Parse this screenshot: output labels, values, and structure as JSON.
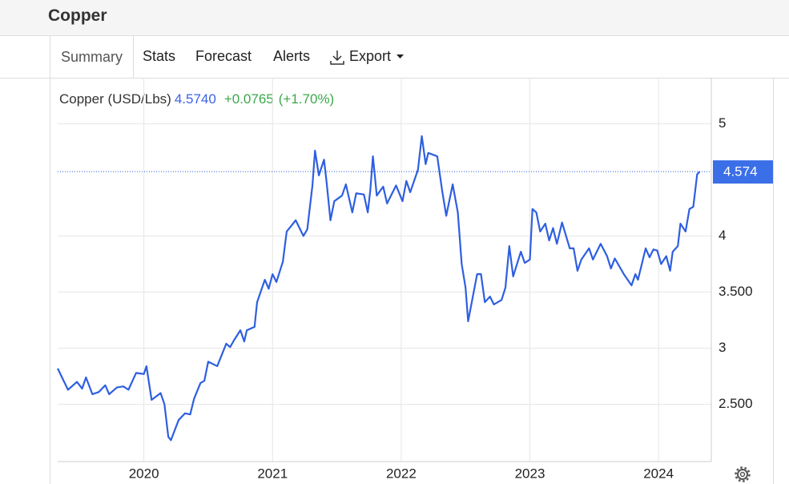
{
  "header": {
    "title": "Copper"
  },
  "tabs": [
    "Summary",
    "Stats",
    "Forecast",
    "Alerts",
    "Export"
  ],
  "quote": {
    "name": "Copper (USD/Lbs)",
    "price": "4.5740",
    "change": "+0.0765",
    "change_percent": "(+1.70%)"
  },
  "chart_data": {
    "type": "line",
    "color": "#2e5fe0",
    "grid": true,
    "xlim": [
      2019.33,
      2024.41
    ],
    "xticks": [
      2020,
      2021,
      2022,
      2023,
      2024
    ],
    "ylim": [
      1.99,
      5.41
    ],
    "yticks": [
      5,
      4,
      {
        "value": 3.5,
        "label": "3.500"
      },
      3,
      {
        "value": 2.5,
        "label": "2.500"
      }
    ],
    "last_value": 4.574,
    "x": [
      2019.33,
      2019.41,
      2019.48,
      2019.52,
      2019.55,
      2019.6,
      2019.65,
      2019.7,
      2019.73,
      2019.79,
      2019.84,
      2019.88,
      2019.94,
      2020.0,
      2020.02,
      2020.06,
      2020.13,
      2020.16,
      2020.19,
      2020.21,
      2020.27,
      2020.32,
      2020.36,
      2020.39,
      2020.44,
      2020.47,
      2020.5,
      2020.57,
      2020.64,
      2020.67,
      2020.7,
      2020.75,
      2020.78,
      2020.8,
      2020.86,
      2020.88,
      2020.94,
      2020.97,
      2021.0,
      2021.03,
      2021.08,
      2021.11,
      2021.18,
      2021.24,
      2021.27,
      2021.31,
      2021.33,
      2021.36,
      2021.4,
      2021.42,
      2021.45,
      2021.48,
      2021.54,
      2021.57,
      2021.62,
      2021.65,
      2021.71,
      2021.74,
      2021.76,
      2021.78,
      2021.81,
      2021.86,
      2021.89,
      2021.96,
      2022.01,
      2022.04,
      2022.07,
      2022.13,
      2022.16,
      2022.19,
      2022.21,
      2022.28,
      2022.32,
      2022.35,
      2022.4,
      2022.44,
      2022.47,
      2022.5,
      2022.52,
      2022.59,
      2022.62,
      2022.65,
      2022.69,
      2022.72,
      2022.78,
      2022.81,
      2022.84,
      2022.87,
      2022.93,
      2022.96,
      2023.0,
      2023.02,
      2023.05,
      2023.08,
      2023.12,
      2023.15,
      2023.18,
      2023.21,
      2023.25,
      2023.31,
      2023.34,
      2023.37,
      2023.4,
      2023.46,
      2023.49,
      2023.55,
      2023.6,
      2023.63,
      2023.66,
      2023.73,
      2023.79,
      2023.82,
      2023.84,
      2023.9,
      2023.93,
      2023.96,
      2023.99,
      2024.02,
      2024.06,
      2024.09,
      2024.11,
      2024.15,
      2024.17,
      2024.21,
      2024.24,
      2024.27,
      2024.3,
      2024.32
    ],
    "series": [
      {
        "name": "Copper",
        "color": "#2e5fe0",
        "values": [
          2.82,
          2.63,
          2.7,
          2.64,
          2.74,
          2.59,
          2.61,
          2.67,
          2.59,
          2.65,
          2.66,
          2.63,
          2.78,
          2.77,
          2.84,
          2.54,
          2.6,
          2.5,
          2.21,
          2.18,
          2.36,
          2.42,
          2.41,
          2.55,
          2.69,
          2.71,
          2.88,
          2.84,
          3.04,
          3.01,
          3.07,
          3.16,
          3.06,
          3.16,
          3.19,
          3.41,
          3.61,
          3.53,
          3.66,
          3.59,
          3.77,
          4.04,
          4.14,
          4.0,
          4.06,
          4.45,
          4.76,
          4.54,
          4.68,
          4.48,
          4.14,
          4.31,
          4.36,
          4.46,
          4.21,
          4.38,
          4.37,
          4.21,
          4.41,
          4.71,
          4.36,
          4.44,
          4.29,
          4.45,
          4.31,
          4.49,
          4.39,
          4.59,
          4.89,
          4.64,
          4.74,
          4.71,
          4.39,
          4.18,
          4.46,
          4.21,
          3.75,
          3.54,
          3.24,
          3.66,
          3.66,
          3.41,
          3.46,
          3.39,
          3.43,
          3.54,
          3.91,
          3.64,
          3.86,
          3.76,
          3.79,
          4.24,
          4.21,
          4.04,
          4.11,
          3.96,
          4.07,
          3.93,
          4.12,
          3.89,
          3.89,
          3.69,
          3.79,
          3.89,
          3.79,
          3.93,
          3.82,
          3.71,
          3.8,
          3.66,
          3.56,
          3.66,
          3.61,
          3.89,
          3.81,
          3.88,
          3.87,
          3.75,
          3.82,
          3.69,
          3.86,
          3.91,
          4.11,
          4.04,
          4.24,
          4.26,
          4.55,
          4.574
        ]
      }
    ]
  }
}
